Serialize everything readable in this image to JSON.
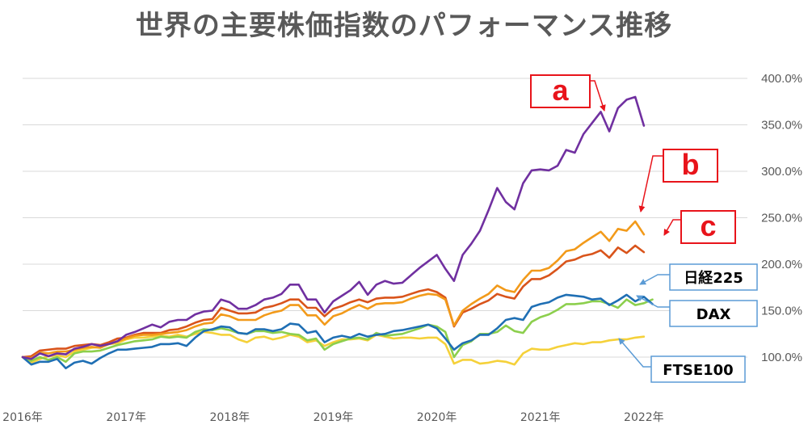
{
  "chart_data": {
    "type": "line",
    "title": "世界の主要株価指数のパフォーマンス推移",
    "ylim": [
      60,
      420
    ],
    "yticks": [
      100,
      150,
      200,
      250,
      300,
      350,
      400
    ],
    "ytick_labels": [
      "100.0%",
      "150.0%",
      "200.0%",
      "250.0%",
      "300.0%",
      "350.0%",
      "400.0%"
    ],
    "x_start": 2016.0,
    "x_step": 0.0833333,
    "xlim": [
      2016.0,
      2023.0
    ],
    "xticks": [
      2016,
      2017,
      2018,
      2019,
      2020,
      2021,
      2022
    ],
    "xtick_labels": [
      "2016年",
      "2017年",
      "2018年",
      "2019年",
      "2020年",
      "2021年",
      "2022年"
    ],
    "grid": true,
    "series": [
      {
        "name": "a",
        "color": "#7030a0",
        "values": [
          100,
          98,
          104,
          101,
          104,
          103,
          109,
          111,
          114,
          112,
          114,
          117,
          124,
          127,
          131,
          135,
          132,
          138,
          140,
          140,
          146,
          149,
          150,
          162,
          159,
          152,
          152,
          156,
          162,
          164,
          168,
          178,
          178,
          162,
          162,
          148,
          160,
          166,
          172,
          181,
          167,
          178,
          182,
          179,
          180,
          188,
          196,
          203,
          210,
          195,
          182,
          210,
          222,
          236,
          258,
          282,
          267,
          259,
          287,
          301,
          302,
          301,
          306,
          323,
          320,
          340,
          352,
          364,
          343,
          368,
          377,
          380,
          349
        ]
      },
      {
        "name": "b",
        "color": "#f29a1a",
        "values": [
          100,
          99,
          105,
          104,
          106,
          106,
          108,
          110,
          111,
          110,
          114,
          117,
          120,
          123,
          124,
          124,
          125,
          126,
          127,
          129,
          133,
          136,
          137,
          146,
          144,
          140,
          140,
          140,
          145,
          148,
          150,
          156,
          156,
          145,
          145,
          135,
          144,
          147,
          152,
          156,
          152,
          157,
          158,
          158,
          159,
          163,
          166,
          168,
          167,
          162,
          134,
          150,
          157,
          163,
          168,
          177,
          172,
          170,
          183,
          193,
          193,
          196,
          204,
          214,
          216,
          223,
          229,
          235,
          225,
          238,
          236,
          246,
          232
        ]
      },
      {
        "name": "c",
        "color": "#d9541b",
        "values": [
          100,
          101,
          107,
          108,
          109,
          109,
          112,
          113,
          114,
          113,
          116,
          120,
          121,
          124,
          126,
          126,
          126,
          129,
          130,
          133,
          137,
          140,
          141,
          153,
          150,
          147,
          147,
          148,
          153,
          155,
          158,
          162,
          162,
          153,
          153,
          144,
          152,
          155,
          159,
          162,
          159,
          163,
          164,
          164,
          165,
          168,
          171,
          173,
          170,
          164,
          133,
          148,
          152,
          157,
          161,
          168,
          165,
          163,
          176,
          184,
          184,
          188,
          195,
          203,
          205,
          209,
          211,
          215,
          207,
          218,
          212,
          220,
          213
        ]
      },
      {
        "name": "日経225",
        "color": "#1f6fb4",
        "values": [
          100,
          92,
          95,
          95,
          98,
          88,
          94,
          96,
          93,
          99,
          104,
          108,
          108,
          109,
          110,
          111,
          114,
          114,
          115,
          112,
          121,
          128,
          130,
          133,
          132,
          126,
          125,
          130,
          130,
          128,
          130,
          136,
          135,
          126,
          128,
          116,
          121,
          123,
          121,
          125,
          122,
          124,
          125,
          128,
          129,
          131,
          133,
          135,
          131,
          120,
          108,
          115,
          118,
          124,
          124,
          131,
          140,
          142,
          140,
          154,
          157,
          159,
          164,
          167,
          166,
          165,
          162,
          163,
          156,
          161,
          167,
          160,
          165,
          157
        ]
      },
      {
        "name": "DAX",
        "color": "#8ccf4d",
        "values": [
          100,
          96,
          100,
          97,
          100,
          95,
          104,
          106,
          106,
          107,
          110,
          113,
          115,
          117,
          118,
          119,
          122,
          121,
          122,
          121,
          127,
          130,
          129,
          131,
          129,
          126,
          125,
          128,
          128,
          126,
          127,
          125,
          124,
          118,
          120,
          108,
          114,
          117,
          120,
          121,
          119,
          126,
          123,
          124,
          125,
          128,
          131,
          135,
          133,
          127,
          100,
          113,
          117,
          125,
          125,
          127,
          134,
          128,
          126,
          138,
          143,
          146,
          151,
          157,
          157,
          158,
          160,
          160,
          157,
          153,
          162,
          156,
          158,
          162
        ]
      },
      {
        "name": "FTSE100",
        "color": "#f5d13a",
        "values": [
          100,
          94,
          98,
          101,
          102,
          100,
          106,
          108,
          110,
          111,
          114,
          115,
          119,
          121,
          121,
          122,
          123,
          122,
          124,
          122,
          125,
          127,
          126,
          124,
          124,
          119,
          116,
          121,
          122,
          119,
          121,
          124,
          122,
          116,
          118,
          112,
          116,
          119,
          119,
          120,
          118,
          124,
          122,
          120,
          121,
          121,
          120,
          121,
          121,
          114,
          93,
          97,
          97,
          93,
          94,
          96,
          95,
          92,
          104,
          109,
          108,
          108,
          111,
          113,
          115,
          114,
          116,
          116,
          118,
          119,
          119,
          121,
          122
        ]
      }
    ],
    "annotations": [
      {
        "text": "a",
        "target": "a"
      },
      {
        "text": "b",
        "target": "b"
      },
      {
        "text": "c",
        "target": "c"
      },
      {
        "text": "日経225",
        "target": "日経225"
      },
      {
        "text": "DAX",
        "target": "DAX"
      },
      {
        "text": "FTSE100",
        "target": "FTSE100"
      }
    ]
  }
}
